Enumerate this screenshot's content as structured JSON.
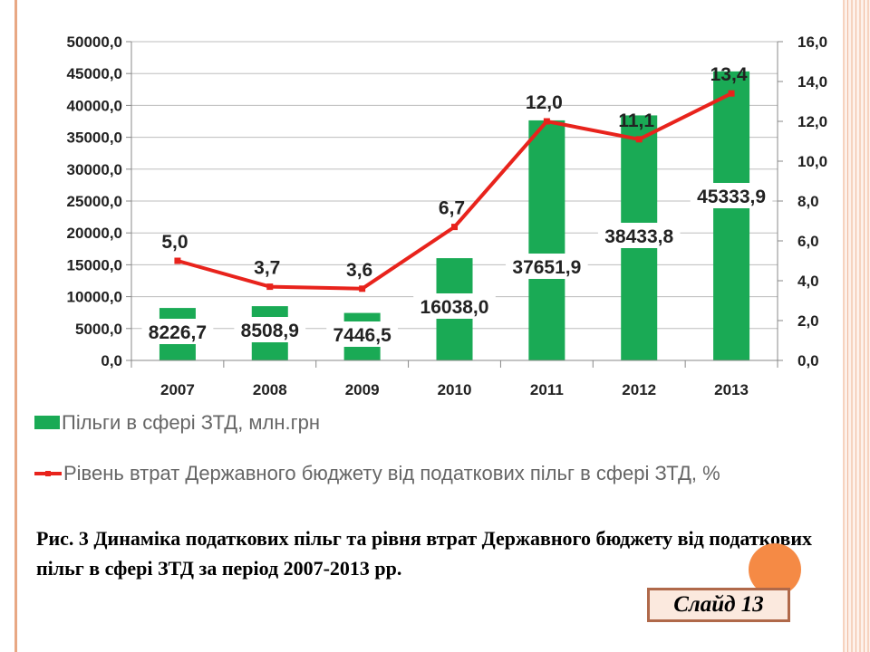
{
  "chart_data": {
    "type": "bar",
    "categories": [
      "2007",
      "2008",
      "2009",
      "2010",
      "2011",
      "2012",
      "2013"
    ],
    "series": [
      {
        "name": "Пільги в сфері ЗТД, млн.грн",
        "type": "bar",
        "axis": "left",
        "color": "#1aaa55",
        "values": [
          8226.7,
          8508.9,
          7446.5,
          16038.0,
          37651.9,
          38433.8,
          45333.9
        ],
        "labels": [
          "8226,7",
          "8508,9",
          "7446,5",
          "16038,0",
          "37651,9",
          "38433,8",
          "45333,9"
        ]
      },
      {
        "name": "Рівень втрат Державного бюджету від податкових пільг в сфері ЗТД, %",
        "type": "line",
        "axis": "right",
        "color": "#e8231c",
        "values": [
          5.0,
          3.7,
          3.6,
          6.7,
          12.0,
          11.1,
          13.4
        ],
        "labels": [
          "5,0",
          "3,7",
          "3,6",
          "6,7",
          "12,0",
          "11,1",
          "13,4"
        ]
      }
    ],
    "y_left": {
      "ylim": [
        0,
        50000
      ],
      "ticks": [
        "0,0",
        "5000,0",
        "10000,0",
        "15000,0",
        "20000,0",
        "25000,0",
        "30000,0",
        "35000,0",
        "40000,0",
        "45000,0",
        "50000,0"
      ]
    },
    "y_right": {
      "ylim": [
        0,
        16
      ],
      "ticks": [
        "0,0",
        "2,0",
        "4,0",
        "6,0",
        "8,0",
        "10,0",
        "12,0",
        "14,0",
        "16,0"
      ]
    },
    "grid": true,
    "legend_position": "bottom",
    "title": "",
    "xlabel": "",
    "ylabel": ""
  },
  "legend": {
    "bar_label": "Пільги в сфері ЗТД, млн.грн",
    "line_label": "Рівень втрат Державного бюджету від податкових пільг в сфері ЗТД, %"
  },
  "caption": "Рис. 3 Динаміка податкових пільг та рівня втрат Державного бюджету від податкових пільг в сфері ЗТД за період 2007-2013 рр.",
  "slide_badge": "Слайд 13",
  "colors": {
    "accent_bar": "#1aaa55",
    "accent_line": "#e8231c",
    "badge_border": "#b0694a",
    "decor_circle": "#f58a45"
  }
}
